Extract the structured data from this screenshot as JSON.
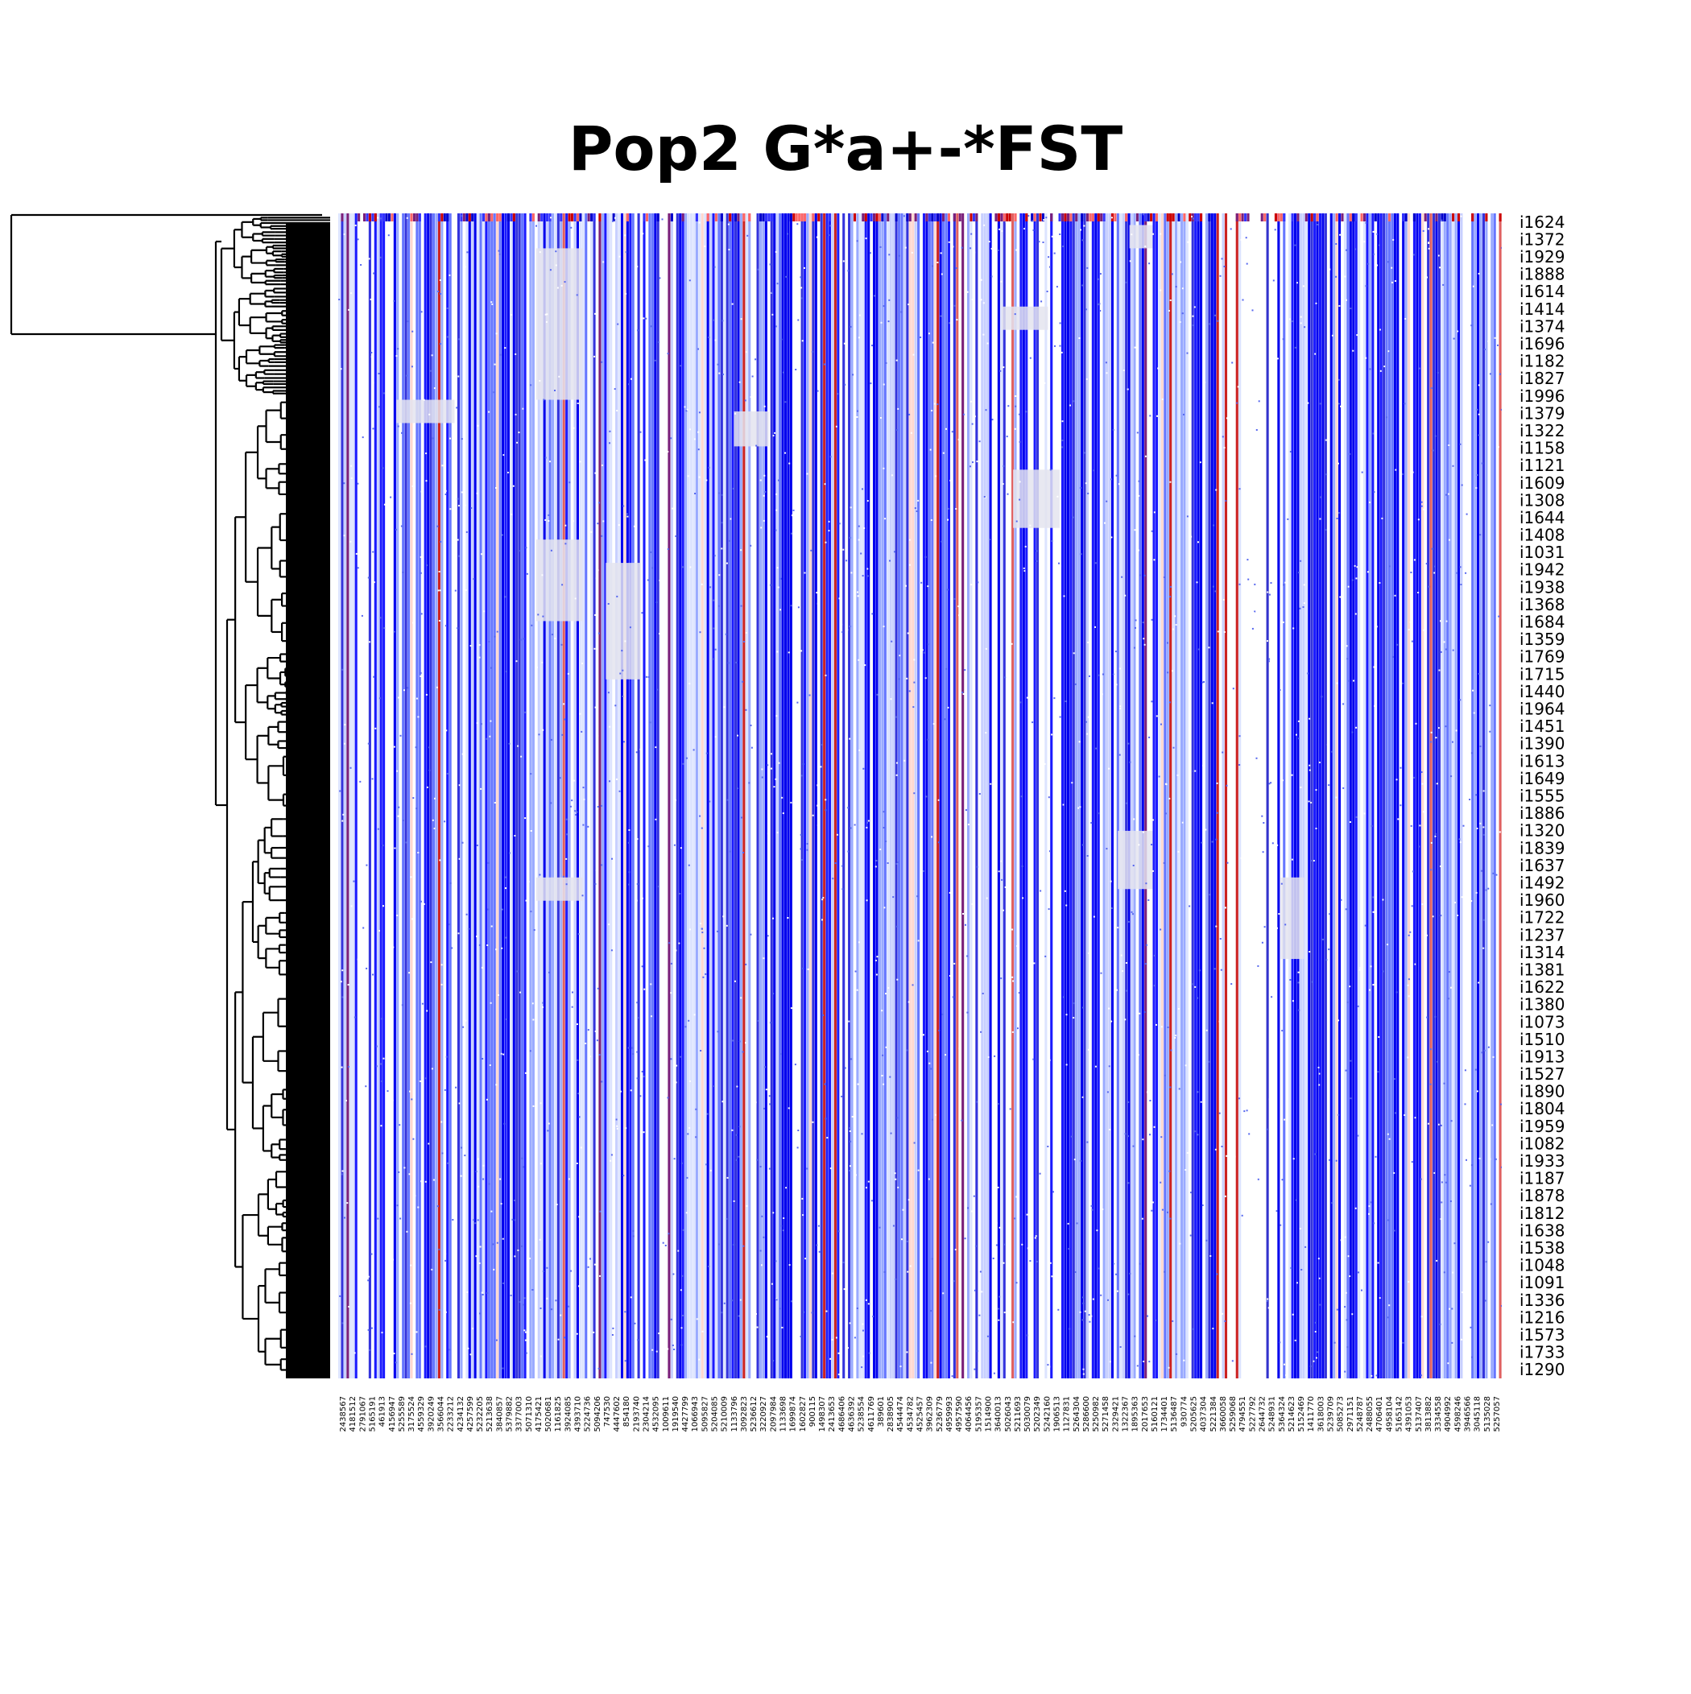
{
  "chart_data": {
    "type": "heatmap",
    "title": "Pop2 G*a+-*FST",
    "row_labels": [
      "i1624",
      "i1372",
      "i1929",
      "i1888",
      "i1614",
      "i1414",
      "i1374",
      "i1696",
      "i1182",
      "i1827",
      "i1996",
      "i1379",
      "i1322",
      "i1158",
      "i1121",
      "i1609",
      "i1308",
      "i1644",
      "i1408",
      "i1031",
      "i1942",
      "i1938",
      "i1368",
      "i1684",
      "i1359",
      "i1769",
      "i1715",
      "i1440",
      "i1964",
      "i1451",
      "i1390",
      "i1613",
      "i1649",
      "i1555",
      "i1886",
      "i1320",
      "i1839",
      "i1637",
      "i1492",
      "i1960",
      "i1722",
      "i1237",
      "i1314",
      "i1381",
      "i1622",
      "i1380",
      "i1073",
      "i1510",
      "i1913",
      "i1527",
      "i1890",
      "i1804",
      "i1959",
      "i1082",
      "i1933",
      "i1187",
      "i1878",
      "i1812",
      "i1638",
      "i1538",
      "i1048",
      "i1091",
      "i1336",
      "i1216",
      "i1573",
      "i1733",
      "i1290"
    ],
    "column_labels": [
      "2438567",
      "4181512",
      "2791067",
      "5165191",
      "461913",
      "4156947",
      "5255589",
      "3175524",
      "4559329",
      "3920249",
      "3566044",
      "2233212",
      "4234132",
      "4257599",
      "5232205",
      "5213638",
      "3840857",
      "5379882",
      "3377003",
      "5071310",
      "4175421",
      "5020681",
      "1161825",
      "3924085",
      "4393710",
      "5224736",
      "5094206",
      "747530",
      "4447602",
      "854180",
      "2193740",
      "2304214",
      "4532095",
      "1009611",
      "1919540",
      "4427799",
      "1066943",
      "5095827",
      "5204085",
      "5210009",
      "1133796",
      "3092823",
      "5236612",
      "3220927",
      "2097984",
      "1133698",
      "1699874",
      "1602827",
      "900115",
      "1498307",
      "2413653",
      "4686406",
      "4636392",
      "5238554",
      "4611769",
      "389601",
      "2838905",
      "4544474",
      "4534782",
      "4525457",
      "3962309",
      "5236779",
      "4959993",
      "4957590",
      "4064456",
      "5195357",
      "1514900",
      "3640013",
      "5026043",
      "5211693",
      "5030079",
      "5202349",
      "5242160",
      "1906513",
      "1127831",
      "5264304",
      "5286600",
      "5250982",
      "5271458",
      "2329421",
      "1322367",
      "1895363",
      "2017653",
      "5160121",
      "1734401",
      "5136487",
      "930774",
      "5205625",
      "4037304",
      "5221384",
      "3660058",
      "5259068",
      "4794551",
      "5227792",
      "2644732",
      "5248931",
      "5364324",
      "5214623",
      "5152469",
      "1411770",
      "3618003",
      "5239709",
      "5085273",
      "2971151",
      "5248787",
      "2488055",
      "4706401",
      "4958104",
      "5165142",
      "4391053",
      "5137407",
      "3813882",
      "3334558",
      "4904992",
      "4598246",
      "3946566",
      "3045118",
      "5135028",
      "5257057"
    ],
    "colorscale": {
      "low": "#0000cc",
      "mid": "#ffffff",
      "high": "#cc0000"
    },
    "dendrogram": "rows"
  }
}
